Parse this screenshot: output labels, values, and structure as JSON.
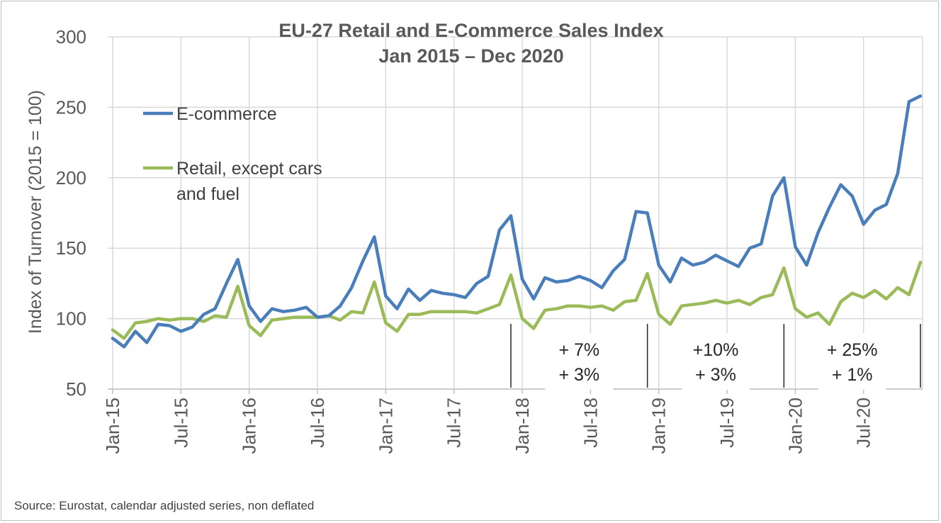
{
  "chart_data": {
    "type": "line",
    "title": [
      "EU-27 Retail and E-Commerce Sales Index",
      "Jan 2015 – Dec 2020"
    ],
    "ylabel": "Index of Turnover (2015 = 100)",
    "xlabel": "",
    "ylim": [
      50,
      300
    ],
    "yticks": [
      50,
      100,
      150,
      200,
      250,
      300
    ],
    "x_start": "Jan-15",
    "x_tick_labels": [
      "Jan-15",
      "Jul-15",
      "Jan-16",
      "Jul-16",
      "Jan-17",
      "Jul-17",
      "Jan-18",
      "Jul-18",
      "Jan-19",
      "Jul-19",
      "Jan-20",
      "Jul-20"
    ],
    "grid": "both",
    "legend_position": "top-left",
    "series": [
      {
        "name": "E-commerce",
        "color": "#4a7ebb",
        "values": [
          86,
          80,
          91,
          83,
          96,
          95,
          91,
          94,
          103,
          107,
          125,
          142,
          109,
          98,
          107,
          105,
          106,
          108,
          101,
          102,
          109,
          122,
          141,
          158,
          116,
          107,
          121,
          113,
          120,
          118,
          117,
          115,
          125,
          130,
          163,
          173,
          128,
          114,
          129,
          126,
          127,
          130,
          127,
          122,
          134,
          142,
          176,
          175,
          138,
          126,
          143,
          138,
          140,
          145,
          141,
          137,
          150,
          153,
          187,
          200,
          151,
          138,
          161,
          179,
          195,
          187,
          167,
          177,
          181,
          203,
          254,
          258
        ]
      },
      {
        "name": "Retail, except cars\nand fuel",
        "color": "#9bbb59",
        "values": [
          92,
          86,
          97,
          98,
          100,
          99,
          100,
          100,
          98,
          102,
          101,
          123,
          95,
          88,
          99,
          100,
          101,
          101,
          101,
          102,
          99,
          105,
          104,
          126,
          97,
          91,
          103,
          103,
          105,
          105,
          105,
          105,
          104,
          107,
          110,
          131,
          100,
          93,
          106,
          107,
          109,
          109,
          108,
          109,
          106,
          112,
          113,
          132,
          103,
          96,
          109,
          110,
          111,
          113,
          111,
          113,
          110,
          115,
          117,
          136,
          107,
          101,
          104,
          96,
          112,
          118,
          115,
          120,
          114,
          122,
          117,
          140
        ]
      }
    ],
    "annotations": [
      {
        "lines": [
          "+ 7%",
          "+ 3%"
        ]
      },
      {
        "lines": [
          "+10%",
          "+ 3%"
        ]
      },
      {
        "lines": [
          "+ 25%",
          "+ 1%"
        ]
      }
    ]
  },
  "source": "Source: Eurostat, calendar adjusted series, non deflated"
}
